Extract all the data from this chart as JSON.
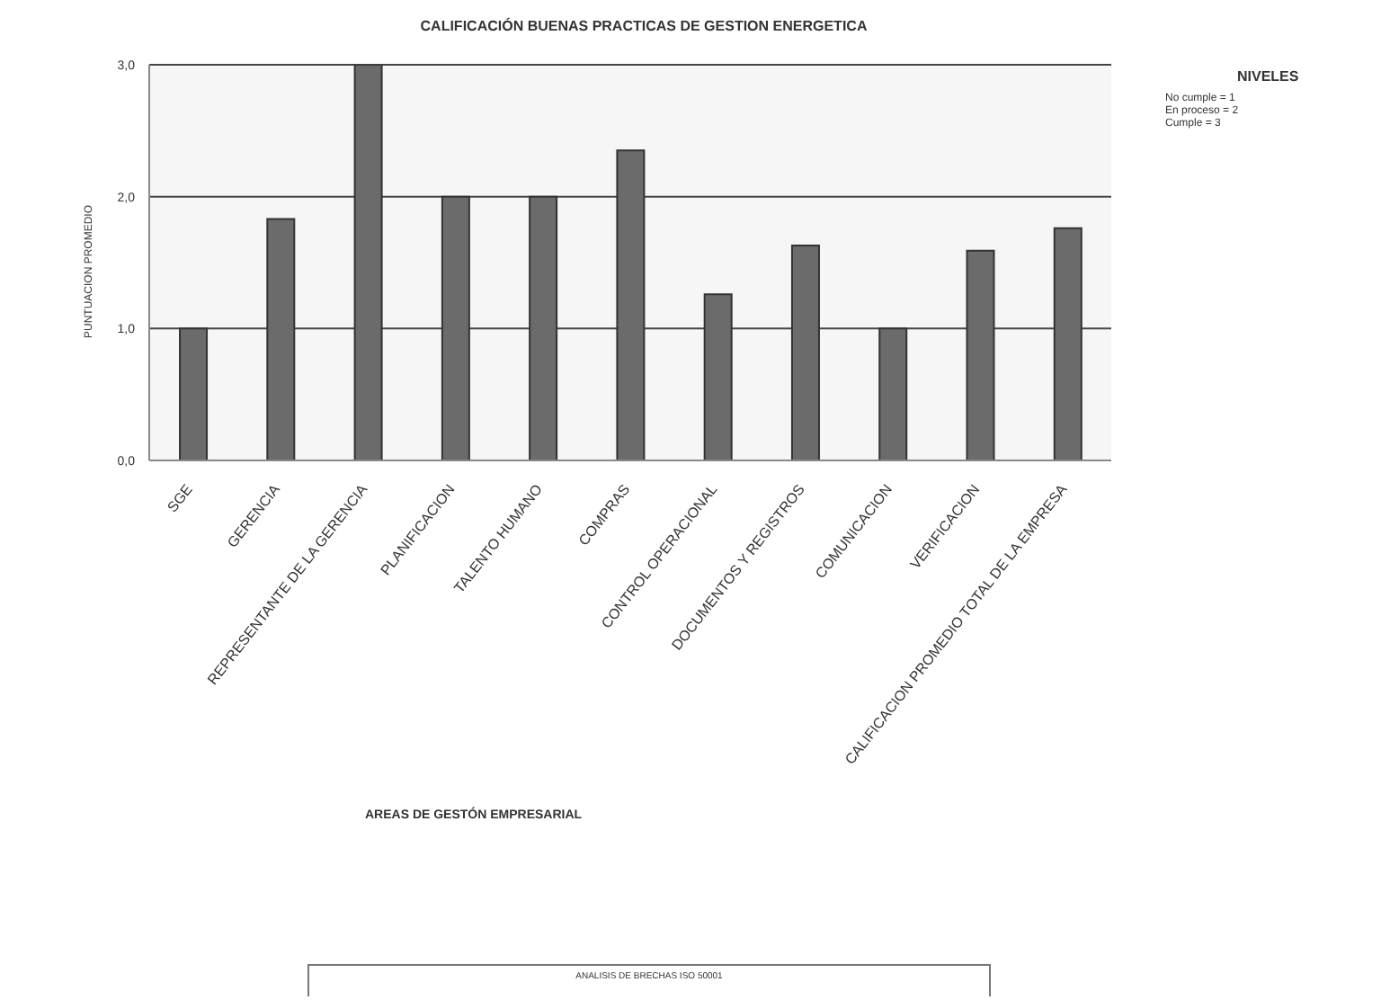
{
  "chart_data": {
    "type": "bar",
    "title": "CALIFICACIÓN BUENAS PRACTICAS DE GESTION ENERGETICA",
    "xlabel": "AREAS DE GESTÓN EMPRESARIAL",
    "ylabel": "PUNTUACION PROMEDIO",
    "categories": [
      "SGE",
      "GERENCIA",
      "REPRESENTANTE DE LA GERENCIA",
      "PLANIFICACION",
      "TALENTO HUMANO",
      "COMPRAS",
      "CONTROL OPERACIONAL",
      "DOCUMENTOS Y REGISTROS",
      "COMUNICACION",
      "VERIFICACION",
      "CALIFICACION PROMEDIO TOTAL DE LA EMPRESA"
    ],
    "values": [
      1.0,
      1.83,
      3.0,
      2.0,
      2.0,
      2.35,
      1.26,
      1.63,
      1.0,
      1.59,
      1.76
    ],
    "color": "#6b6b6b",
    "ylim": [
      0,
      3
    ],
    "yticks": [
      {
        "value": 0,
        "label": "0,0"
      },
      {
        "value": 1,
        "label": "1,0"
      },
      {
        "value": 2,
        "label": "2,0"
      },
      {
        "value": 3,
        "label": "3,0"
      }
    ],
    "grid": "y",
    "annotations": [
      "NIVELES",
      "No cumple = 1",
      "En proceso = 2",
      "Cumple = 3",
      "ANALISIS DE BRECHAS ISO 50001"
    ]
  }
}
